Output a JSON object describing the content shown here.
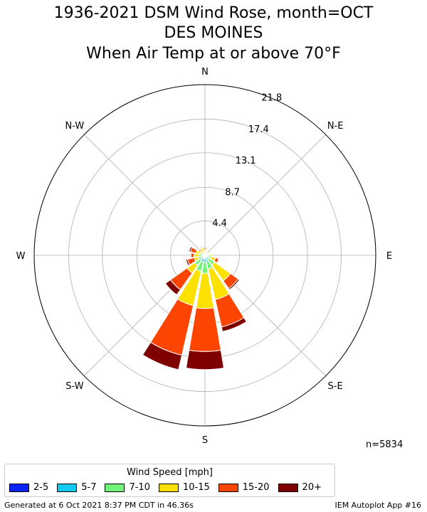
{
  "title": {
    "line1": "1936-2021 DSM Wind Rose, month=OCT",
    "line2": "DES MOINES",
    "line3": "When  Air Temp at or above 70°F"
  },
  "n_label": "n=5834",
  "legend": {
    "title": "Wind Speed [mph]",
    "items": [
      {
        "label": "2-5",
        "color": "#0a25f5"
      },
      {
        "label": "5-7",
        "color": "#11cbee"
      },
      {
        "label": "7-10",
        "color": "#74f37a"
      },
      {
        "label": "10-15",
        "color": "#fce000"
      },
      {
        "label": "15-20",
        "color": "#fc4500"
      },
      {
        "label": "20+",
        "color": "#7f0000"
      }
    ]
  },
  "footer": {
    "left": "Generated at 6 Oct 2021 8:37 PM CDT in 46.36s",
    "right": "IEM Autoplot App #16"
  },
  "chart_data": {
    "type": "windrose",
    "radial_unit": "percent frequency",
    "radial_ticks": [
      "4.4",
      "8.7",
      "13.1",
      "17.4",
      "21.8"
    ],
    "radial_tick_values": [
      4.4,
      8.7,
      13.1,
      17.4,
      21.8
    ],
    "radial_max": 21.8,
    "direction_labels": [
      "N",
      "N-E",
      "E",
      "S-E",
      "S",
      "S-W",
      "W",
      "N-W"
    ],
    "directions_deg": [
      0,
      22.5,
      45,
      67.5,
      90,
      112.5,
      135,
      157.5,
      180,
      202.5,
      225,
      247.5,
      270,
      292.5,
      315,
      337.5
    ],
    "series": [
      {
        "name": "2-5",
        "values": [
          0.1,
          0.1,
          0.1,
          0.1,
          0.2,
          0.2,
          0.3,
          0.3,
          0.4,
          0.4,
          0.3,
          0.2,
          0.2,
          0.1,
          0.1,
          0.1
        ]
      },
      {
        "name": "5-7",
        "values": [
          0.1,
          0.1,
          0.1,
          0.1,
          0.2,
          0.2,
          0.3,
          0.4,
          0.5,
          0.5,
          0.4,
          0.2,
          0.2,
          0.1,
          0.1,
          0.1
        ]
      },
      {
        "name": "7-10",
        "values": [
          0.2,
          0.1,
          0.1,
          0.2,
          0.3,
          0.4,
          0.9,
          1.1,
          1.4,
          1.2,
          0.9,
          0.5,
          0.4,
          0.3,
          0.2,
          0.2
        ]
      },
      {
        "name": "10-15",
        "values": [
          0.4,
          0.1,
          0.1,
          0.1,
          0.2,
          0.6,
          2.5,
          4.0,
          4.5,
          4.5,
          1.2,
          0.5,
          0.6,
          0.7,
          0.4,
          0.6
        ]
      },
      {
        "name": "15-20",
        "values": [
          0.2,
          0.0,
          0.0,
          0.0,
          0.0,
          0.4,
          1.2,
          3.6,
          5.5,
          6.5,
          2.6,
          0.9,
          0.4,
          0.7,
          0.2,
          0.1
        ]
      },
      {
        "name": "20+",
        "values": [
          0.1,
          0.0,
          0.0,
          0.0,
          0.0,
          0.1,
          0.2,
          0.6,
          2.3,
          1.9,
          0.8,
          0.2,
          0.1,
          0.2,
          0.1,
          0.1
        ]
      }
    ]
  }
}
